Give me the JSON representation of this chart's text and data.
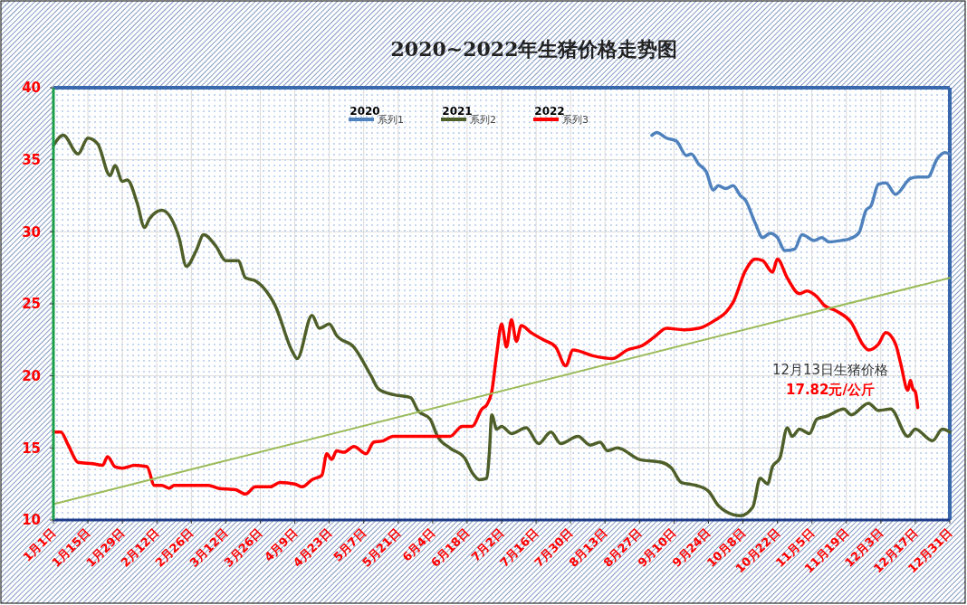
{
  "chart_data": {
    "type": "line",
    "title": "2020~2022年生猪价格走势图",
    "xlim": [
      "--01-01",
      "--12-31"
    ],
    "xticks": [
      {
        "value": "--01-01",
        "label": "1月1日"
      },
      {
        "value": "--01-15",
        "label": "1月15日"
      },
      {
        "value": "--01-29",
        "label": "1月29日"
      },
      {
        "value": "--02-12",
        "label": "2月12日"
      },
      {
        "value": "--02-26",
        "label": "2月26日"
      },
      {
        "value": "--03-12",
        "label": "3月12日"
      },
      {
        "value": "--03-26",
        "label": "3月26日"
      },
      {
        "value": "--04-09",
        "label": "4月9日"
      },
      {
        "value": "--04-23",
        "label": "4月23日"
      },
      {
        "value": "--05-07",
        "label": "5月7日"
      },
      {
        "value": "--05-21",
        "label": "5月21日"
      },
      {
        "value": "--06-04",
        "label": "6月4日"
      },
      {
        "value": "--06-18",
        "label": "6月18日"
      },
      {
        "value": "--07-02",
        "label": "7月2日"
      },
      {
        "value": "--07-16",
        "label": "7月16日"
      },
      {
        "value": "--07-30",
        "label": "7月30日"
      },
      {
        "value": "--08-13",
        "label": "8月13日"
      },
      {
        "value": "--08-27",
        "label": "8月27日"
      },
      {
        "value": "--09-10",
        "label": "9月10日"
      },
      {
        "value": "--09-24",
        "label": "9月24日"
      },
      {
        "value": "--10-08",
        "label": "10月8日"
      },
      {
        "value": "--10-22",
        "label": "10月22日"
      },
      {
        "value": "--11-05",
        "label": "11月5日"
      },
      {
        "value": "--11-19",
        "label": "11月19日"
      },
      {
        "value": "--12-03",
        "label": "12月3日"
      },
      {
        "value": "--12-17",
        "label": "12月17日"
      },
      {
        "value": "--12-31",
        "label": "12月31日"
      }
    ],
    "ylim": [
      10,
      40
    ],
    "yticks": [
      10,
      15,
      20,
      25,
      30,
      35,
      40
    ],
    "grid": true,
    "legend": "top",
    "line_style": "solid",
    "annotations": [
      "2020",
      "2021",
      "2022",
      "12月13日生猪价格",
      "17.82元/公斤"
    ],
    "series": [
      {
        "name": "系列1",
        "color": "#4f81bd",
        "x": [
          "--09-01",
          "--09-03",
          "--09-07",
          "--09-11",
          "--09-15",
          "--09-17",
          "--09-20",
          "--09-23",
          "--09-26",
          "--09-28",
          "--10-01",
          "--10-04",
          "--10-07",
          "--10-09",
          "--10-13",
          "--10-16",
          "--10-19",
          "--10-22",
          "--10-25",
          "--10-29",
          "--11-01",
          "--11-06",
          "--11-09",
          "--11-12",
          "--11-17",
          "--11-20",
          "--11-24",
          "--11-27",
          "--11-29",
          "--12-02",
          "--12-05",
          "--12-09",
          "--12-15",
          "--12-18",
          "--12-22",
          "--12-26",
          "--12-29",
          "--12-31"
        ],
        "values": [
          36.7,
          36.9,
          36.5,
          36.3,
          35.3,
          35.4,
          34.7,
          34.2,
          32.9,
          33.2,
          33.0,
          33.2,
          32.5,
          32.2,
          30.6,
          29.6,
          29.9,
          29.6,
          28.7,
          28.8,
          29.8,
          29.4,
          29.6,
          29.3,
          29.4,
          29.5,
          29.9,
          31.5,
          31.8,
          33.3,
          33.4,
          32.6,
          33.7,
          33.8,
          33.8,
          35.1,
          35.5,
          35.4
        ]
      },
      {
        "name": "系列2",
        "color": "#4f5f2a",
        "x": [
          "--01-01",
          "--01-05",
          "--01-11",
          "--01-15",
          "--01-19",
          "--01-24",
          "--01-26",
          "--01-29",
          "--01-31",
          "--02-04",
          "--02-07",
          "--02-09",
          "--02-14",
          "--02-21",
          "--02-24",
          "--02-28",
          "--03-03",
          "--03-08",
          "--03-12",
          "--03-17",
          "--03-20",
          "--03-24",
          "--03-30",
          "--04-01",
          "--04-08",
          "--04-10",
          "--04-16",
          "--04-19",
          "--04-23",
          "--04-26",
          "--05-03",
          "--05-10",
          "--05-13",
          "--05-19",
          "--05-26",
          "--05-29",
          "--06-03",
          "--06-06",
          "--06-11",
          "--06-17",
          "--06-20",
          "--06-23",
          "--06-26",
          "--06-27",
          "--06-28",
          "--06-30",
          "--07-02",
          "--07-06",
          "--07-12",
          "--07-17",
          "--07-22",
          "--07-26",
          "--08-02",
          "--08-07",
          "--08-11",
          "--08-14",
          "--08-18",
          "--08-27",
          "--09-05",
          "--09-09",
          "--09-13",
          "--09-19",
          "--09-24",
          "--09-28",
          "--10-01",
          "--10-07",
          "--10-12",
          "--10-15",
          "--10-18",
          "--10-20",
          "--10-23",
          "--10-26",
          "--10-28",
          "--10-31",
          "--11-04",
          "--11-07",
          "--11-11",
          "--11-18",
          "--11-21",
          "--11-28",
          "--12-02",
          "--12-07",
          "--12-14",
          "--12-17",
          "--12-24",
          "--12-28",
          "--12-31"
        ],
        "values": [
          36.0,
          36.7,
          35.4,
          36.5,
          36.1,
          33.9,
          34.6,
          33.5,
          33.6,
          32.0,
          30.3,
          30.9,
          31.5,
          29.6,
          27.6,
          28.7,
          29.8,
          29.0,
          28.0,
          28.0,
          26.8,
          26.6,
          25.5,
          24.9,
          21.7,
          21.2,
          24.2,
          23.3,
          23.6,
          22.8,
          22.0,
          20.0,
          19.1,
          18.7,
          18.5,
          17.6,
          17.0,
          15.8,
          15.0,
          14.3,
          13.3,
          12.8,
          12.9,
          14.6,
          17.3,
          16.3,
          16.5,
          16.0,
          16.4,
          15.3,
          16.1,
          15.3,
          15.8,
          15.2,
          15.4,
          14.8,
          15.0,
          14.2,
          14.0,
          13.6,
          12.6,
          12.4,
          12.0,
          11.0,
          10.6,
          10.3,
          10.9,
          12.9,
          12.5,
          13.7,
          14.3,
          16.4,
          15.8,
          16.3,
          16.0,
          17.0,
          17.2,
          17.7,
          17.3,
          18.1,
          17.6,
          17.7,
          15.8,
          16.3,
          15.5,
          16.3,
          16.1
        ]
      },
      {
        "name": "系列3",
        "color": "#ff0000",
        "x": [
          "--01-01",
          "--01-04",
          "--01-07",
          "--01-11",
          "--01-17",
          "--01-21",
          "--01-23",
          "--01-26",
          "--01-29",
          "--02-03",
          "--02-08",
          "--02-11",
          "--02-14",
          "--02-17",
          "--02-19",
          "--02-27",
          "--03-05",
          "--03-09",
          "--03-16",
          "--03-20",
          "--03-24",
          "--03-30",
          "--04-03",
          "--04-09",
          "--04-12",
          "--04-16",
          "--04-20",
          "--04-22",
          "--04-24",
          "--04-26",
          "--04-29",
          "--05-03",
          "--05-08",
          "--05-11",
          "--05-15",
          "--05-19",
          "--05-24",
          "--06-02",
          "--06-06",
          "--06-11",
          "--06-16",
          "--06-20",
          "--06-24",
          "--06-26",
          "--06-28",
          "--06-30",
          "--07-02",
          "--07-04",
          "--07-06",
          "--07-08",
          "--07-10",
          "--07-14",
          "--07-19",
          "--07-24",
          "--07-28",
          "--07-31",
          "--08-08",
          "--08-16",
          "--08-22",
          "--08-28",
          "--09-02",
          "--09-07",
          "--09-14",
          "--09-20",
          "--09-27",
          "--10-01",
          "--10-04",
          "--10-09",
          "--10-13",
          "--10-16",
          "--10-20",
          "--10-22",
          "--10-26",
          "--10-31",
          "--11-03",
          "--11-07",
          "--11-10",
          "--11-15",
          "--11-21",
          "--11-26",
          "--11-28",
          "--12-02",
          "--12-05",
          "--12-09",
          "--12-11",
          "--12-14",
          "--12-15",
          "--12-16",
          "--12-17",
          "--12-18"
        ],
        "values": [
          16.1,
          16.1,
          15.2,
          14.0,
          13.9,
          13.8,
          14.4,
          13.7,
          13.6,
          13.8,
          13.7,
          12.4,
          12.4,
          12.2,
          12.4,
          12.4,
          12.4,
          12.2,
          12.1,
          11.8,
          12.3,
          12.3,
          12.6,
          12.5,
          12.3,
          12.8,
          13.1,
          14.6,
          14.2,
          14.8,
          14.7,
          15.1,
          14.6,
          15.4,
          15.5,
          15.8,
          15.8,
          15.8,
          15.8,
          15.8,
          16.5,
          16.5,
          17.7,
          18.0,
          18.9,
          21.5,
          23.6,
          22.0,
          23.9,
          22.4,
          23.5,
          23.0,
          22.5,
          22.0,
          20.7,
          21.8,
          21.4,
          21.2,
          21.8,
          22.1,
          22.7,
          23.3,
          23.2,
          23.3,
          23.9,
          24.4,
          25.1,
          27.3,
          28.1,
          28.0,
          27.2,
          28.1,
          26.8,
          25.7,
          25.9,
          25.5,
          24.9,
          24.5,
          23.7,
          22.1,
          21.8,
          22.2,
          23.0,
          22.2,
          20.9,
          19.0,
          19.7,
          19.1,
          18.9,
          17.8
        ]
      },
      {
        "type": "line",
        "color": "#9bbb59",
        "x": [
          "--01-01",
          "--12-31"
        ],
        "values": [
          11.1,
          26.8
        ]
      }
    ]
  }
}
